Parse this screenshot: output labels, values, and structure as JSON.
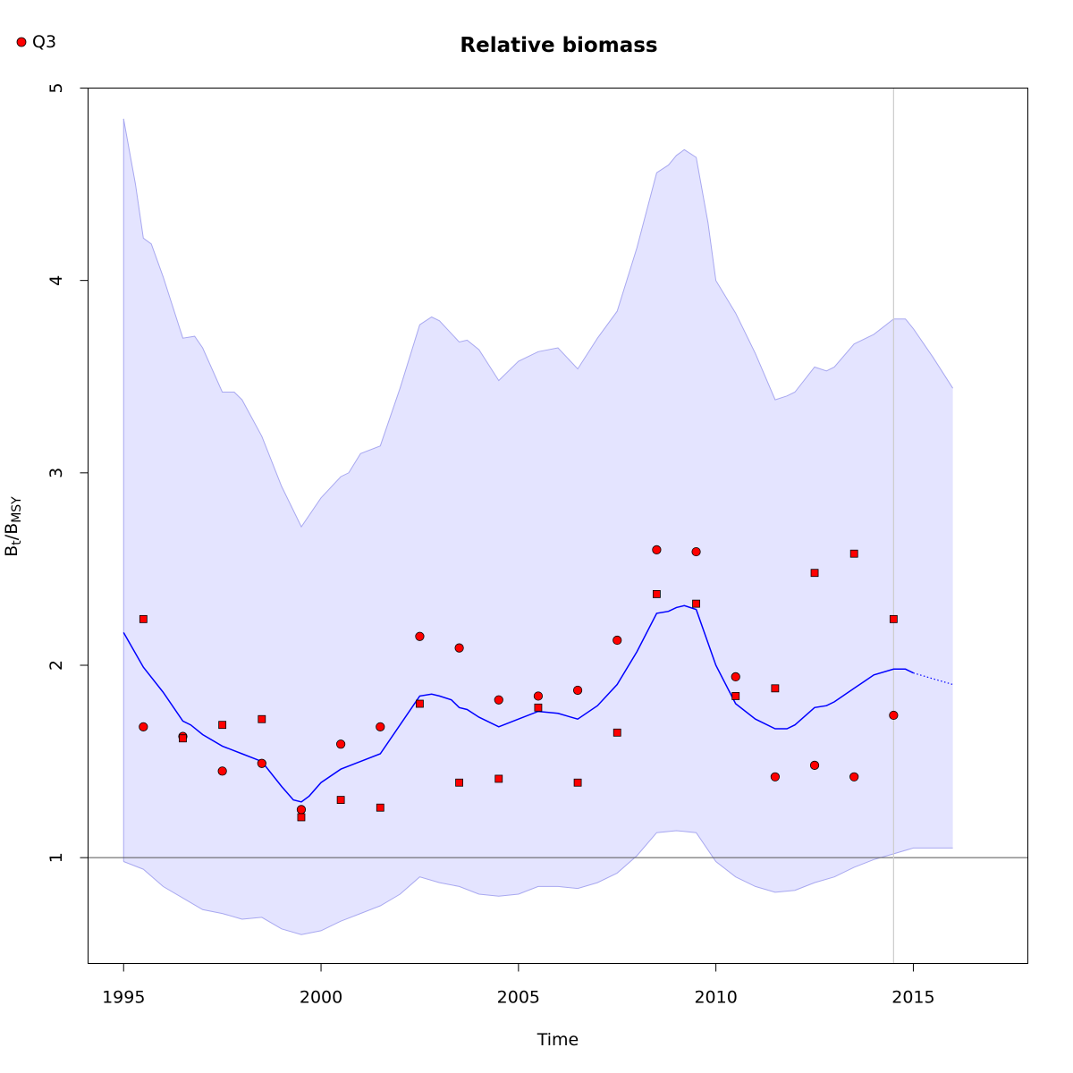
{
  "chart_data": {
    "type": "line",
    "title": "Relative biomass",
    "xlabel": "Time",
    "ylabel": {
      "main": "B",
      "sub1": "t",
      "sep": "/B",
      "sub2": "MSY"
    },
    "xlim": [
      1994.1,
      2017.9
    ],
    "ylim": [
      0.45,
      5.0
    ],
    "xticks": [
      1995,
      2000,
      2005,
      2010,
      2015
    ],
    "yticks": [
      1,
      2,
      3,
      4,
      5
    ],
    "reference_line_y": 1,
    "vertical_line_x": 2014.5,
    "grid": false,
    "legend": {
      "position": "top-left",
      "entries": [
        {
          "label": "Q3",
          "marker": "circle",
          "color": "#ff0000"
        }
      ]
    },
    "colors": {
      "fit_line": "#0000ff",
      "ci_fill": "#e4e4ff",
      "ci_edge": "#a8a8f0",
      "points": "#ff0000",
      "reference": "#555555",
      "vline": "#cccccc"
    },
    "series": [
      {
        "role": "estimate",
        "x": [
          1995.0,
          1995.5,
          1996.0,
          1996.5,
          1996.7,
          1997.0,
          1997.5,
          1998.0,
          1998.5,
          1999.0,
          1999.3,
          1999.5,
          1999.7,
          2000.0,
          2000.5,
          2001.0,
          2001.5,
          2002.0,
          2002.5,
          2002.8,
          2003.0,
          2003.3,
          2003.5,
          2003.7,
          2004.0,
          2004.5,
          2005.0,
          2005.5,
          2006.0,
          2006.5,
          2007.0,
          2007.5,
          2008.0,
          2008.5,
          2008.8,
          2009.0,
          2009.2,
          2009.5,
          2010.0,
          2010.5,
          2011.0,
          2011.5,
          2011.8,
          2012.0,
          2012.5,
          2012.8,
          2013.0,
          2013.5,
          2014.0,
          2014.5,
          2014.8,
          2015.0
        ],
        "y": [
          2.17,
          1.99,
          1.86,
          1.71,
          1.69,
          1.64,
          1.58,
          1.54,
          1.5,
          1.37,
          1.3,
          1.29,
          1.32,
          1.39,
          1.46,
          1.5,
          1.54,
          1.69,
          1.84,
          1.85,
          1.84,
          1.82,
          1.78,
          1.77,
          1.73,
          1.68,
          1.72,
          1.76,
          1.75,
          1.72,
          1.79,
          1.9,
          2.07,
          2.27,
          2.28,
          2.3,
          2.31,
          2.29,
          2.0,
          1.8,
          1.72,
          1.67,
          1.67,
          1.69,
          1.78,
          1.79,
          1.81,
          1.88,
          1.95,
          1.98,
          1.98,
          1.96
        ]
      },
      {
        "role": "projection",
        "x": [
          2015.0,
          2015.5,
          2016.0
        ],
        "y": [
          1.96,
          1.93,
          1.9
        ]
      },
      {
        "role": "ci_upper",
        "x": [
          1995.0,
          1995.3,
          1995.5,
          1995.7,
          1996.0,
          1996.5,
          1996.8,
          1997.0,
          1997.5,
          1997.8,
          1998.0,
          1998.5,
          1999.0,
          1999.5,
          2000.0,
          2000.5,
          2000.7,
          2001.0,
          2001.5,
          2002.0,
          2002.5,
          2002.8,
          2003.0,
          2003.5,
          2003.7,
          2004.0,
          2004.5,
          2005.0,
          2005.5,
          2006.0,
          2006.5,
          2007.0,
          2007.5,
          2008.0,
          2008.5,
          2008.8,
          2009.0,
          2009.2,
          2009.5,
          2009.8,
          2010.0,
          2010.5,
          2011.0,
          2011.5,
          2011.8,
          2012.0,
          2012.5,
          2012.8,
          2013.0,
          2013.5,
          2014.0,
          2014.5,
          2014.8,
          2015.0,
          2015.5,
          2016.0
        ],
        "y": [
          4.84,
          4.5,
          4.22,
          4.19,
          4.02,
          3.7,
          3.71,
          3.65,
          3.42,
          3.42,
          3.38,
          3.19,
          2.93,
          2.72,
          2.87,
          2.98,
          3.0,
          3.1,
          3.14,
          3.44,
          3.77,
          3.81,
          3.79,
          3.68,
          3.69,
          3.64,
          3.48,
          3.58,
          3.63,
          3.65,
          3.54,
          3.7,
          3.84,
          4.17,
          4.56,
          4.6,
          4.65,
          4.68,
          4.64,
          4.3,
          4.0,
          3.83,
          3.62,
          3.38,
          3.4,
          3.42,
          3.55,
          3.53,
          3.55,
          3.67,
          3.72,
          3.8,
          3.8,
          3.75,
          3.6,
          3.44
        ]
      },
      {
        "role": "ci_lower",
        "x": [
          1995.0,
          1995.5,
          1996.0,
          1996.5,
          1997.0,
          1997.5,
          1998.0,
          1998.5,
          1999.0,
          1999.5,
          2000.0,
          2000.5,
          2001.0,
          2001.5,
          2002.0,
          2002.5,
          2003.0,
          2003.5,
          2004.0,
          2004.5,
          2005.0,
          2005.5,
          2006.0,
          2006.5,
          2007.0,
          2007.5,
          2008.0,
          2008.5,
          2009.0,
          2009.5,
          2010.0,
          2010.5,
          2011.0,
          2011.5,
          2012.0,
          2012.5,
          2013.0,
          2013.5,
          2014.0,
          2014.5,
          2015.0,
          2015.5,
          2016.0
        ],
        "y": [
          0.98,
          0.94,
          0.85,
          0.79,
          0.73,
          0.71,
          0.68,
          0.69,
          0.63,
          0.6,
          0.62,
          0.67,
          0.71,
          0.75,
          0.81,
          0.9,
          0.87,
          0.85,
          0.81,
          0.8,
          0.81,
          0.85,
          0.85,
          0.84,
          0.87,
          0.92,
          1.01,
          1.13,
          1.14,
          1.13,
          0.98,
          0.9,
          0.85,
          0.82,
          0.83,
          0.87,
          0.9,
          0.95,
          0.99,
          1.02,
          1.05,
          1.05,
          1.05
        ]
      },
      {
        "role": "observed_index_1",
        "marker": "circle",
        "x": [
          1995.5,
          1996.5,
          1997.5,
          1998.5,
          1999.5,
          2000.5,
          2001.5,
          2002.5,
          2003.5,
          2004.5,
          2005.5,
          2006.5,
          2007.5,
          2008.5,
          2009.5,
          2010.5,
          2011.5,
          2012.5,
          2013.5,
          2014.5
        ],
        "y": [
          1.68,
          1.63,
          1.45,
          1.49,
          1.25,
          1.59,
          1.68,
          2.15,
          2.09,
          1.82,
          1.84,
          1.87,
          2.13,
          2.6,
          2.59,
          1.94,
          1.42,
          1.48,
          1.42,
          1.74
        ]
      },
      {
        "role": "observed_index_2",
        "marker": "square",
        "x": [
          1995.5,
          1996.5,
          1997.5,
          1998.5,
          1999.5,
          2000.5,
          2001.5,
          2002.5,
          2003.5,
          2004.5,
          2005.5,
          2006.5,
          2007.5,
          2008.5,
          2009.5,
          2010.5,
          2011.5,
          2012.5,
          2013.5,
          2014.5
        ],
        "y": [
          2.24,
          1.62,
          1.69,
          1.72,
          1.21,
          1.3,
          1.26,
          1.8,
          1.39,
          1.41,
          1.78,
          1.39,
          1.65,
          2.37,
          2.32,
          1.84,
          1.88,
          2.48,
          2.58,
          2.24
        ]
      }
    ]
  }
}
